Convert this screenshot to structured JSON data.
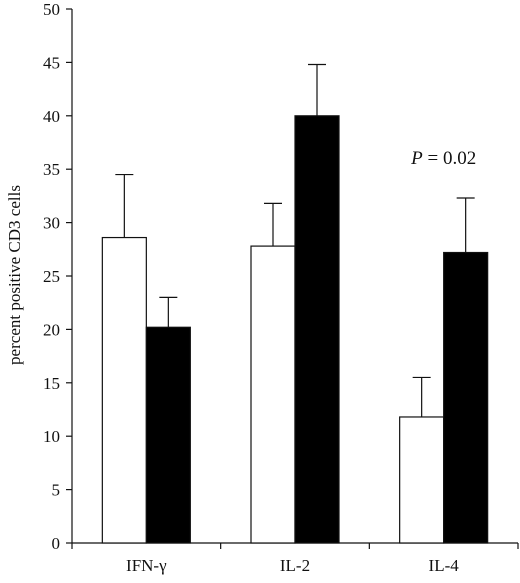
{
  "chart_data": {
    "type": "bar",
    "title": "",
    "xlabel": "",
    "ylabel": "percent positive CD3 cells",
    "ylim": [
      0,
      50
    ],
    "yticks": [
      0,
      5,
      10,
      15,
      20,
      25,
      30,
      35,
      40,
      45,
      50
    ],
    "categories": [
      "IFN-γ",
      "IL-2",
      "IL-4"
    ],
    "series": [
      {
        "fill": "#ffffff",
        "values": [
          28.6,
          27.8,
          11.8
        ],
        "errors": [
          5.9,
          4.0,
          3.7
        ]
      },
      {
        "fill": "#000000",
        "values": [
          20.2,
          40.0,
          27.2
        ],
        "errors": [
          2.8,
          4.8,
          5.1
        ]
      }
    ],
    "grid": false,
    "legend": "none",
    "annotations": [
      {
        "category": "IL-4",
        "y": 35.5,
        "prefix": "P",
        "text": " = 0.02"
      }
    ]
  }
}
